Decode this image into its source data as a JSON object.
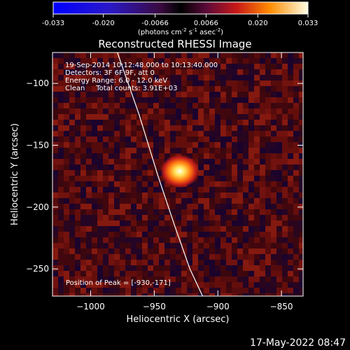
{
  "colorbar": {
    "ticks": [
      "-0.033",
      "-0.020",
      "-0.0066",
      "0.0066",
      "0.020",
      "0.033"
    ],
    "unit_prefix": "(photons cm",
    "unit_exp1": "-2",
    "unit_mid": " s",
    "unit_exp2": "-1",
    "unit_mid2": " asec",
    "unit_exp3": "-2",
    "unit_suffix": ")"
  },
  "chart_data": {
    "type": "heatmap",
    "title": "Reconstructed RHESSI Image",
    "xlabel": "Heliocentric X (arcsec)",
    "ylabel": "Heliocentric Y (arcsec)",
    "xlim": [
      -1030,
      -833
    ],
    "ylim": [
      -272,
      -75
    ],
    "x_ticks": [
      -1000,
      -950,
      -900,
      -850
    ],
    "x_tick_labels": [
      "−1000",
      "−950",
      "−900",
      "−850"
    ],
    "y_ticks": [
      -100,
      -150,
      -200,
      -250
    ],
    "y_tick_labels": [
      "−100",
      "−150",
      "−200",
      "−250"
    ],
    "colorbar_range": [
      -0.033,
      0.033
    ],
    "peak": {
      "x": -930,
      "y": -171
    },
    "limb_curve_x": [
      -979,
      -962,
      -947,
      -934,
      -922,
      -912
    ],
    "limb_curve_y": [
      -75,
      -125,
      -175,
      -215,
      -250,
      -272
    ],
    "info_lines": [
      "19-Sep-2014 10:12:48.000 to 10:13:40.000",
      "Detectors: 3F 6F 9F, att 0",
      "Energy Range: 6.0 - 12.0 keV",
      "Clean     Total counts: 3.91E+03"
    ],
    "peak_label": "Position of Peak = [-930,-171]"
  },
  "footer": {
    "timestamp": "17-May-2022 08:47"
  },
  "colors": {
    "background": "#000000",
    "foreground": "#ffffff"
  }
}
